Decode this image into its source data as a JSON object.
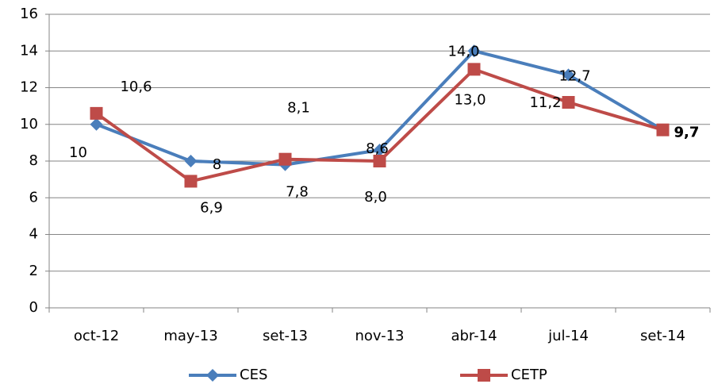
{
  "chart_data": {
    "type": "line",
    "categories": [
      "oct-12",
      "may-13",
      "set-13",
      "nov-13",
      "abr-14",
      "jul-14",
      "set-14"
    ],
    "series": [
      {
        "name": "CES",
        "color": "#4a7ebb",
        "marker": "diamond",
        "values": [
          10,
          8,
          7.8,
          8.6,
          14.0,
          12.7,
          9.7
        ],
        "value_labels": [
          "10",
          "8",
          "7,8",
          "8,6",
          "14,0",
          "12,7",
          "9,7"
        ]
      },
      {
        "name": "CETP",
        "color": "#be4b48",
        "marker": "square",
        "values": [
          10.6,
          6.9,
          8.1,
          8.0,
          13.0,
          11.2,
          9.7
        ],
        "value_labels": [
          "10,6",
          "6,9",
          "8,1",
          "8,0",
          "13,0",
          "11,2",
          "9,7"
        ]
      }
    ],
    "ylim": [
      0,
      16
    ],
    "yticks": [
      0,
      2,
      4,
      6,
      8,
      10,
      12,
      14,
      16
    ],
    "grid": true,
    "legend": "bottom"
  }
}
